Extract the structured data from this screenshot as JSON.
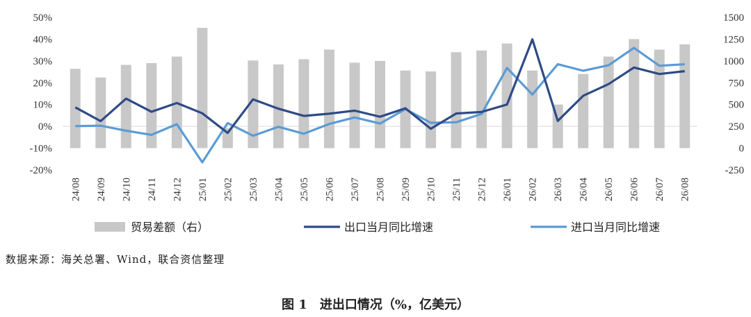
{
  "chart_data": {
    "type": "bar+line",
    "categories": [
      "24/08",
      "24/09",
      "24/10",
      "24/11",
      "24/12",
      "25/01",
      "25/02",
      "25/03",
      "25/04",
      "25/05",
      "25/06",
      "25/07",
      "25/08",
      "25/09",
      "25/10",
      "25/11",
      "25/12",
      "26/01",
      "26/02",
      "26/03",
      "26/04",
      "26/05",
      "26/06",
      "26/07",
      "26/08"
    ],
    "left_axis": {
      "ylim": [
        -20,
        50
      ],
      "ticks": [
        "-20%",
        "-10%",
        "0%",
        "10%",
        "20%",
        "30%",
        "40%",
        "50%"
      ]
    },
    "right_axis": {
      "ylim": [
        -250,
        1500
      ],
      "ticks": [
        "-250",
        "0",
        "250",
        "500",
        "750",
        "1000",
        "1250",
        "1500"
      ]
    },
    "series": [
      {
        "name": "贸易差额（右）",
        "kind": "bar",
        "axis": "right",
        "color": "#c8c8c8",
        "values": [
          910,
          810,
          955,
          975,
          1050,
          1380,
          230,
          1005,
          960,
          1020,
          1130,
          980,
          1000,
          890,
          880,
          1100,
          1120,
          1200,
          890,
          500,
          850,
          1050,
          1250,
          1130,
          1190
        ]
      },
      {
        "name": "出口当月同比增速",
        "kind": "line",
        "axis": "left",
        "color": "#2e4a86",
        "values": [
          8.7,
          2.4,
          12.7,
          6.7,
          10.7,
          6.0,
          -3.0,
          12.4,
          8.1,
          4.8,
          5.8,
          7.2,
          4.4,
          8.3,
          -1.1,
          5.9,
          6.6,
          10.0,
          39.9,
          2.5,
          14.0,
          19.4,
          27.0,
          24.0,
          25.3
        ]
      },
      {
        "name": "进口当月同比增速",
        "kind": "line",
        "axis": "left",
        "color": "#5b9bd5",
        "values": [
          0.1,
          0.3,
          -2.0,
          -3.9,
          1.0,
          -16.5,
          1.5,
          -4.3,
          -0.2,
          -3.4,
          1.1,
          4.1,
          1.3,
          7.9,
          1.6,
          1.9,
          5.7,
          26.8,
          14.6,
          28.5,
          25.5,
          28.0,
          36.0,
          27.8,
          28.5
        ]
      }
    ],
    "legend_position": "bottom"
  },
  "source": "数据来源：海关总署、Wind，联合资信整理",
  "caption": "图 1　进出口情况（%，亿美元）"
}
